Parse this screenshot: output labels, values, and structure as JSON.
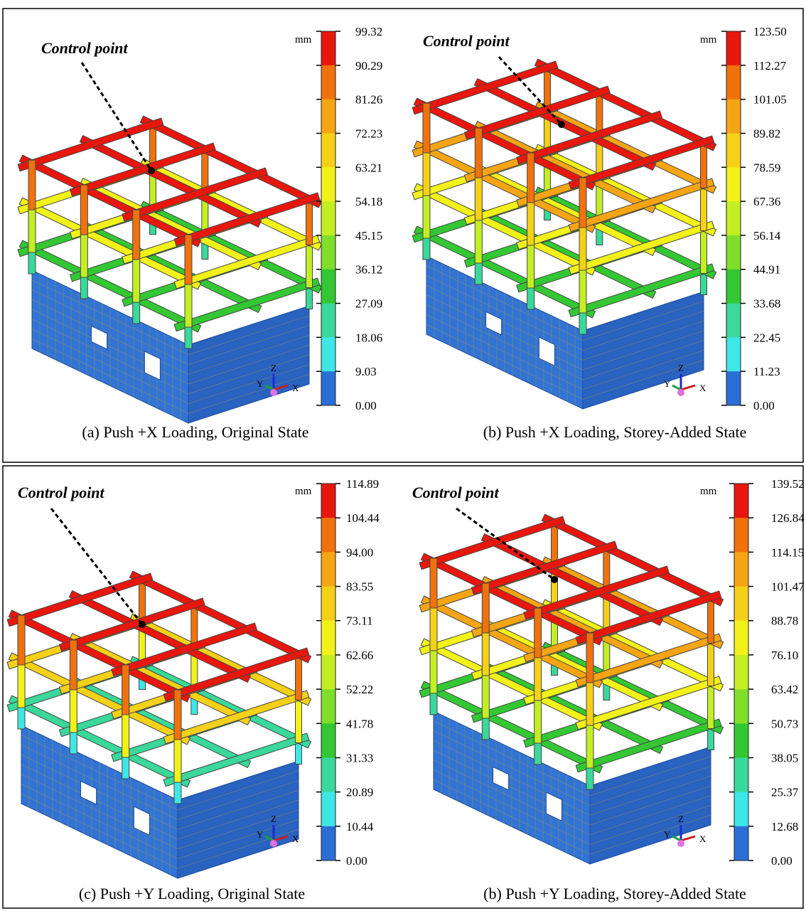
{
  "panels": [
    {
      "control_label": "Control point",
      "unit": "mm",
      "legend": [
        "99.32",
        "90.29",
        "81.26",
        "72.23",
        "63.21",
        "54.18",
        "45.15",
        "36.12",
        "27.09",
        "18.06",
        "9.03",
        "0.00"
      ],
      "caption": "(a) Push +X Loading, Original State",
      "axes": {
        "z": "Z",
        "y": "Y",
        "x": "X"
      }
    },
    {
      "control_label": "Control point",
      "unit": "mm",
      "legend": [
        "123.50",
        "112.27",
        "101.05",
        "89.82",
        "78.59",
        "67.36",
        "56.14",
        "44.91",
        "33.68",
        "22.45",
        "11.23",
        "0.00"
      ],
      "caption": "(b) Push +X Loading, Storey-Added State",
      "axes": {
        "z": "Z",
        "y": "Y",
        "x": "X"
      }
    },
    {
      "control_label": "Control point",
      "unit": "mm",
      "legend": [
        "114.89",
        "104.44",
        "94.00",
        "83.55",
        "73.11",
        "62.66",
        "52.22",
        "41.78",
        "31.33",
        "20.89",
        "10.44",
        "0.00"
      ],
      "caption": "(c) Push +Y Loading, Original State",
      "axes": {
        "z": "Z",
        "y": "Y",
        "x": "X"
      }
    },
    {
      "control_label": "Control point",
      "unit": "mm",
      "legend": [
        "139.52",
        "126.84",
        "114.15",
        "101.47",
        "88.78",
        "76.10",
        "63.42",
        "50.73",
        "38.05",
        "25.37",
        "12.68",
        "0.00"
      ],
      "caption": "(b) Push +Y Loading, Storey-Added State",
      "axes": {
        "z": "Z",
        "y": "Y",
        "x": "X"
      }
    }
  ],
  "legend_colors": [
    "#e8170d",
    "#f0720c",
    "#f5a514",
    "#f5d018",
    "#f2f21a",
    "#c4ee24",
    "#7fde2a",
    "#33c833",
    "#3ad89a",
    "#3fe6e6",
    "#2b6fd6"
  ]
}
